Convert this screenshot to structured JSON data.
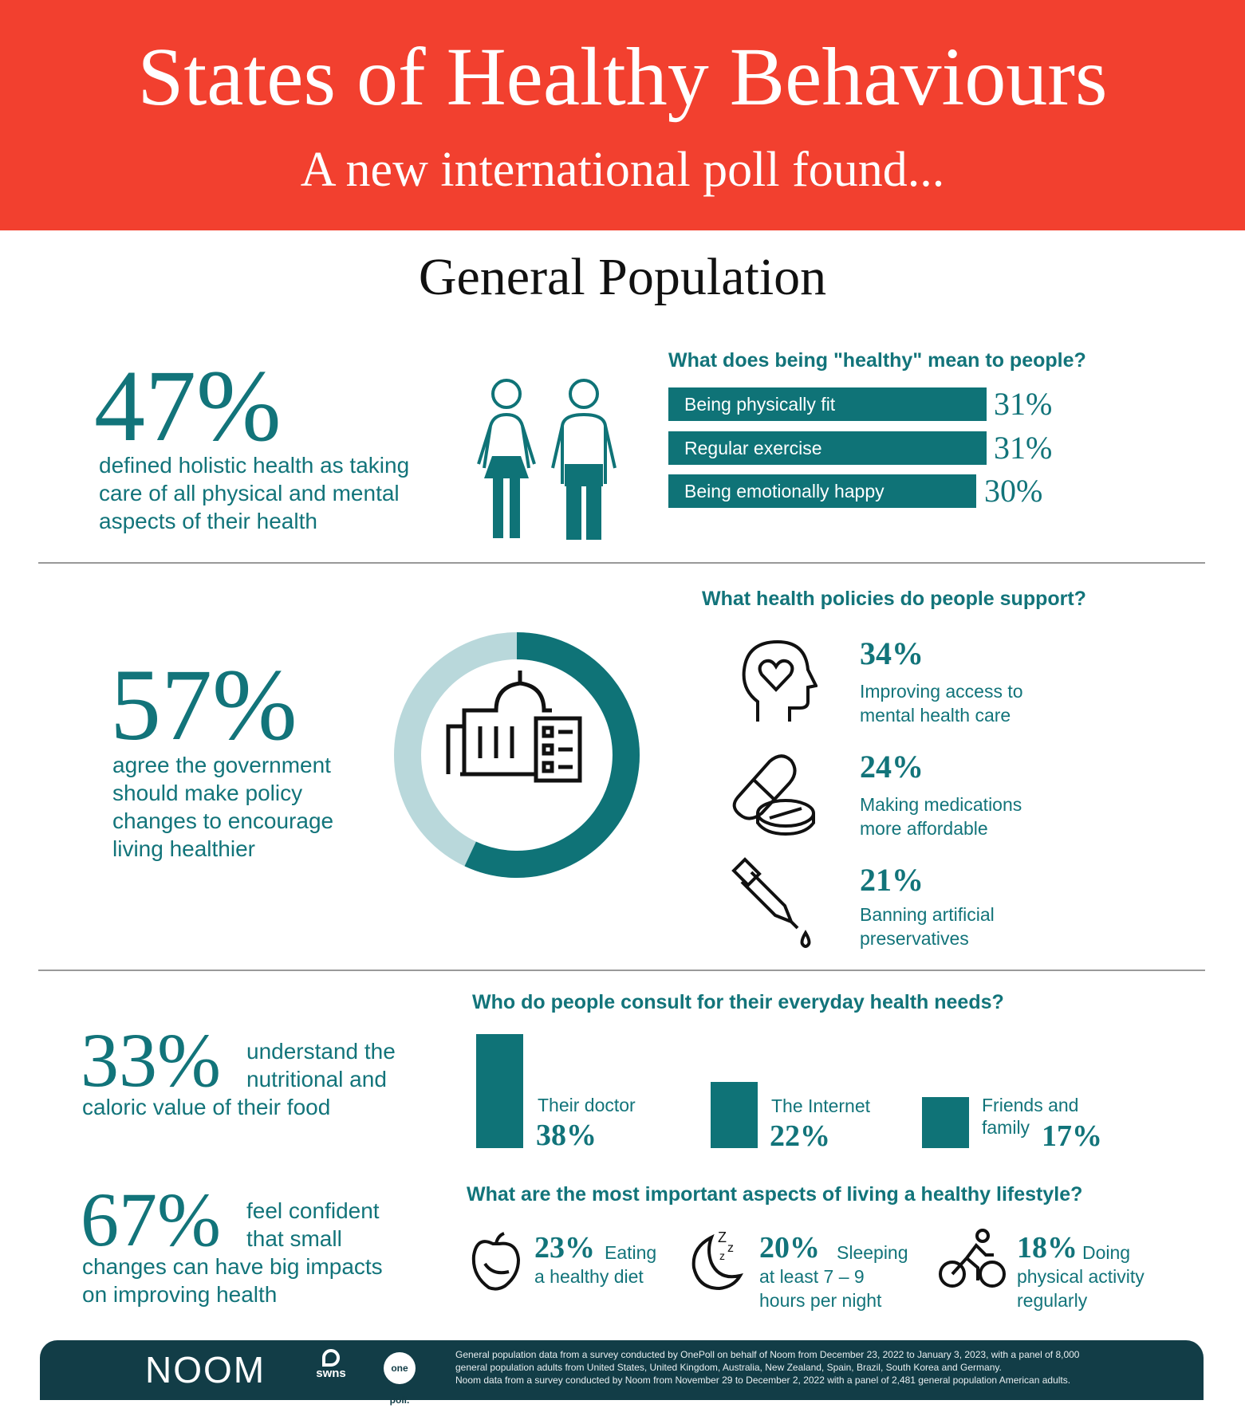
{
  "header": {
    "title": "States of Healthy Behaviours",
    "subtitle": "A new international poll found..."
  },
  "section_title": "General Population",
  "colors": {
    "red": "#f2402f",
    "teal": "#0f7377",
    "light_teal": "#b9d8db",
    "footer": "#123d47"
  },
  "holistic": {
    "percent": "47%",
    "lines": [
      "defined holistic health as taking",
      "care of all physical and mental",
      "aspects of their health"
    ]
  },
  "healthy_meaning": {
    "question": "What does being \"healthy\" mean to people?",
    "items": [
      {
        "label": "Being physically fit",
        "value": "31%",
        "pct": 31
      },
      {
        "label": "Regular exercise",
        "value": "31%",
        "pct": 31
      },
      {
        "label": "Being emotionally happy",
        "value": "30%",
        "pct": 30
      }
    ]
  },
  "government": {
    "percent": "57%",
    "fraction": 0.57,
    "lines": [
      "agree the government",
      "should make policy",
      "changes to encourage",
      "living healthier"
    ]
  },
  "policies": {
    "question": "What health policies do people support?",
    "items": [
      {
        "icon": "head-heart-icon",
        "value": "34%",
        "lines": [
          "Improving access to",
          "mental health care"
        ]
      },
      {
        "icon": "pills-icon",
        "value": "24%",
        "lines": [
          "Making medications",
          "more affordable"
        ]
      },
      {
        "icon": "dropper-icon",
        "value": "21%",
        "lines": [
          "Banning artificial",
          "preservatives"
        ]
      }
    ]
  },
  "nutrition": {
    "percent": "33%",
    "side": [
      "understand the",
      "nutritional and"
    ],
    "line": "caloric value of their food"
  },
  "confidence": {
    "percent": "67%",
    "side": [
      "feel confident",
      "that small"
    ],
    "lines": [
      "changes can have big impacts",
      "on improving health"
    ]
  },
  "consult": {
    "question": "Who do people consult for their everyday health needs?",
    "items": [
      {
        "label": "Their doctor",
        "value": "38%",
        "pct": 38
      },
      {
        "label": "The Internet",
        "value": "22%",
        "pct": 22
      },
      {
        "label": "Friends and family",
        "label_lines": [
          "Friends and",
          "family"
        ],
        "value": "17%",
        "pct": 17
      }
    ]
  },
  "lifestyle": {
    "question": "What are the most important aspects of living a healthy lifestyle?",
    "items": [
      {
        "icon": "fruit-icon",
        "value": "23%",
        "lines": [
          "Eating",
          "a healthy diet"
        ]
      },
      {
        "icon": "sleep-moon-icon",
        "value": "20%",
        "lines": [
          "Sleeping",
          "at least 7 – 9",
          "hours per night"
        ]
      },
      {
        "icon": "cyclist-icon",
        "value": "18%",
        "lines": [
          "Doing",
          "physical activity",
          "regularly"
        ]
      }
    ]
  },
  "footer": {
    "logos": {
      "noom": "NOOM",
      "swns": "swns",
      "onepoll": "one poll."
    },
    "notes": [
      "General population data from a survey conducted by OnePoll on behalf of Noom from December 23, 2022 to January 3, 2023, with a panel of 8,000",
      "general population adults from United States, United Kingdom, Australia, New Zealand, Spain, Brazil, South Korea and Germany.",
      "Noom data from a survey conducted by Noom from November 29 to December 2, 2022 with a panel of 2,481 general population American adults."
    ]
  }
}
